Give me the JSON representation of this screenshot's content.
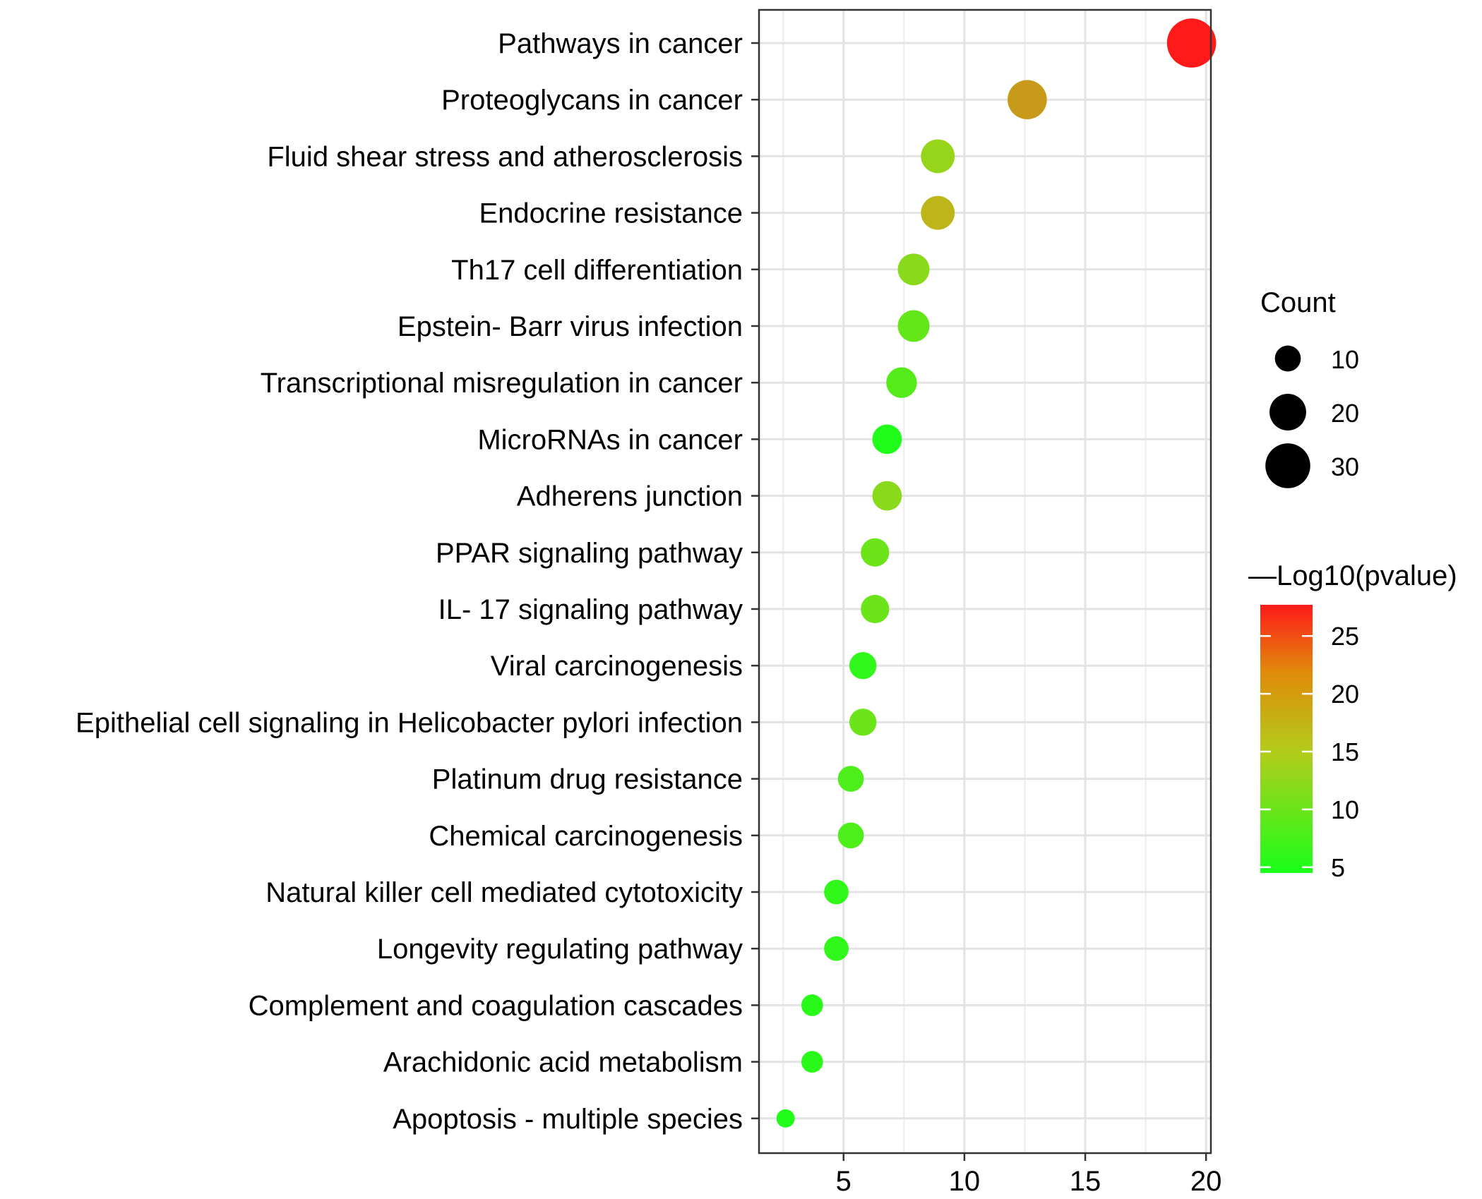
{
  "chart_data": {
    "type": "scatter",
    "title": "",
    "xlabel": "",
    "ylabel": "",
    "xlim": [
      1.5,
      20.2
    ],
    "x_ticks": [
      "5",
      "10",
      "15",
      "20"
    ],
    "grid": true,
    "categories": [
      "Pathways in cancer",
      "Proteoglycans in cancer",
      "Fluid shear stress and atherosclerosis",
      "Endocrine resistance",
      "Th17 cell differentiation",
      "Epstein- Barr virus infection",
      "Transcriptional misregulation in cancer",
      "MicroRNAs in cancer",
      "Adherens junction",
      "PPAR signaling pathway",
      "IL- 17 signaling pathway",
      "Viral carcinogenesis",
      "Epithelial cell signaling in Helicobacter pylori infection",
      "Platinum drug resistance",
      "Chemical carcinogenesis",
      "Natural killer cell mediated cytotoxicity",
      "Longevity regulating pathway",
      "Complement and coagulation cascades",
      "Arachidonic acid metabolism",
      "Apoptosis -  multiple species"
    ],
    "x": [
      19.4,
      12.6,
      8.9,
      8.9,
      7.9,
      7.9,
      7.4,
      6.8,
      6.8,
      6.3,
      6.3,
      5.8,
      5.8,
      5.3,
      5.3,
      4.7,
      4.7,
      3.7,
      3.7,
      2.6
    ],
    "count": [
      36,
      23,
      17,
      17,
      15,
      15,
      14,
      13,
      13,
      12,
      12,
      11,
      11,
      10,
      10,
      9,
      9,
      7,
      7,
      5
    ],
    "neg_log10_pvalue": [
      27.7,
      18.5,
      13.0,
      16.5,
      12.0,
      9.5,
      8.5,
      5.0,
      12.0,
      10.0,
      10.0,
      6.0,
      10.0,
      8.0,
      8.0,
      6.0,
      6.0,
      5.5,
      5.5,
      5.0
    ],
    "size_legend": {
      "title": "Count",
      "labels": [
        "10",
        "20",
        "30"
      ],
      "values": [
        10,
        20,
        30
      ]
    },
    "color_legend": {
      "title": "—Log10(pvalue)",
      "labels": [
        "25",
        "20",
        "15",
        "10",
        "5"
      ],
      "values": [
        25,
        20,
        15,
        10,
        5
      ],
      "range": [
        4.5,
        27.7
      ],
      "low_color": "#1aff1a",
      "mid_color": "#b3cc1a",
      "high_color": "#ff1a1a"
    },
    "legend_position": "right"
  }
}
